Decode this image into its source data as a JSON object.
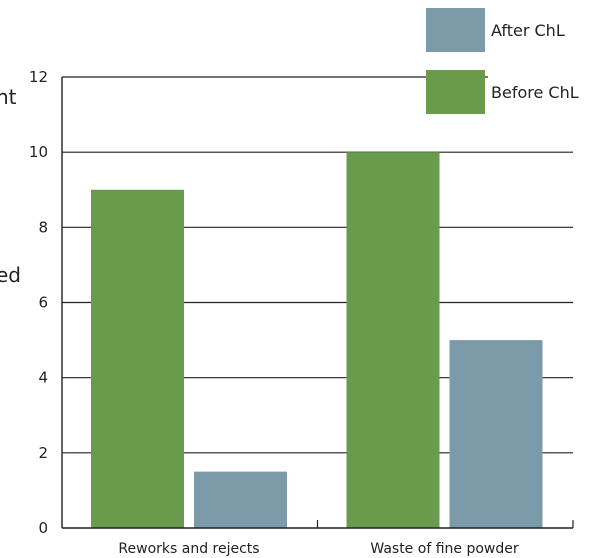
{
  "chart_data": {
    "type": "bar",
    "categories": [
      "Reworks and rejects",
      "Waste of fine powder"
    ],
    "series": [
      {
        "name": "Before ChL",
        "values": [
          9,
          10
        ],
        "color": "#6a9a4c"
      },
      {
        "name": "After ChL",
        "values": [
          1.5,
          5
        ],
        "color": "#7b9bab"
      }
    ],
    "ylim": [
      0,
      12
    ],
    "yticks": [
      0,
      2,
      4,
      6,
      8,
      10,
      12
    ],
    "grid": true,
    "legend_position": "top-right",
    "ylabel_fragments": [
      "nt",
      "ed"
    ]
  }
}
